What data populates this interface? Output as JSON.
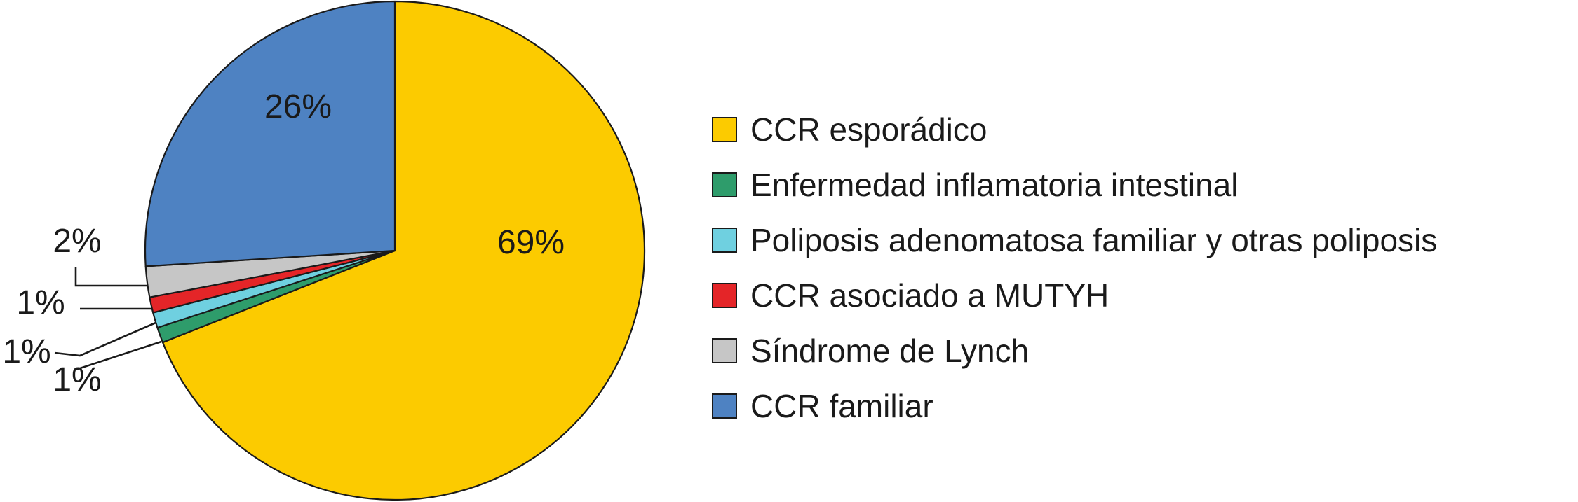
{
  "chart_data": {
    "type": "pie",
    "title": "",
    "start": "12 o'clock",
    "direction": "clockwise",
    "slices": [
      {
        "label": "CCR esporádico",
        "value": 69,
        "display": "69%",
        "color": "#FCCB00"
      },
      {
        "label": "Enfermedad inflamatoria intestinal",
        "value": 1,
        "display": "1%",
        "color": "#2E9C6B"
      },
      {
        "label": "Poliposis adenomatosa familiar y otras poliposis",
        "value": 1,
        "display": "1%",
        "color": "#6FD0E0"
      },
      {
        "label": "CCR asociado a MUTYH",
        "value": 1,
        "display": "1%",
        "color": "#E42528"
      },
      {
        "label": "Síndrome de Lynch",
        "value": 2,
        "display": "2%",
        "color": "#C6C6C6"
      },
      {
        "label": "CCR familiar",
        "value": 26,
        "display": "26%",
        "color": "#4E82C2"
      }
    ],
    "legend": {
      "placement": "right",
      "order": [
        "CCR esporádico",
        "Enfermedad inflamatoria intestinal",
        "Poliposis adenomatosa familiar y otras poliposis",
        "CCR asociado a MUTYH",
        "Síndrome de Lynch",
        "CCR familiar"
      ]
    }
  }
}
